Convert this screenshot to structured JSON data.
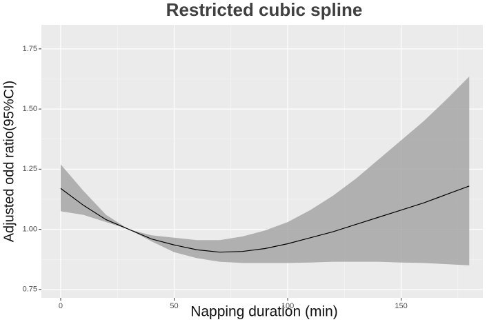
{
  "chart_data": {
    "type": "line_band",
    "title": "Restricted cubic spline",
    "x_label": "Napping duration (min)",
    "y_label": "Adjusted odd ratio(95%CI)",
    "x": [
      0,
      10,
      20,
      30,
      40,
      50,
      60,
      70,
      80,
      90,
      100,
      110,
      120,
      130,
      140,
      150,
      160,
      170,
      180
    ],
    "series": [
      {
        "color": "#000000",
        "band_color": "#a6a6a6",
        "values": [
          1.17,
          1.1,
          1.04,
          1.0,
          0.96,
          0.935,
          0.915,
          0.905,
          0.908,
          0.92,
          0.94,
          0.965,
          0.99,
          1.02,
          1.05,
          1.08,
          1.11,
          1.145,
          1.18
        ],
        "lower": [
          1.075,
          1.06,
          1.03,
          1.0,
          0.95,
          0.905,
          0.88,
          0.865,
          0.86,
          0.86,
          0.86,
          0.862,
          0.865,
          0.865,
          0.865,
          0.862,
          0.86,
          0.855,
          0.85
        ],
        "upper": [
          1.27,
          1.16,
          1.06,
          1.0,
          0.975,
          0.965,
          0.955,
          0.955,
          0.97,
          0.995,
          1.03,
          1.08,
          1.14,
          1.21,
          1.29,
          1.37,
          1.45,
          1.54,
          1.635
        ]
      }
    ],
    "xlim": [
      -8.5,
      186
    ],
    "ylim": [
      0.715,
      1.85
    ],
    "xticks": [
      0,
      50,
      100,
      150
    ],
    "yticks": [
      0.75,
      {
        "value": 1.0,
        "label": "1.00"
      },
      1.25,
      {
        "value": 1.5,
        "label": "1.50"
      },
      1.75
    ],
    "grid": true
  }
}
